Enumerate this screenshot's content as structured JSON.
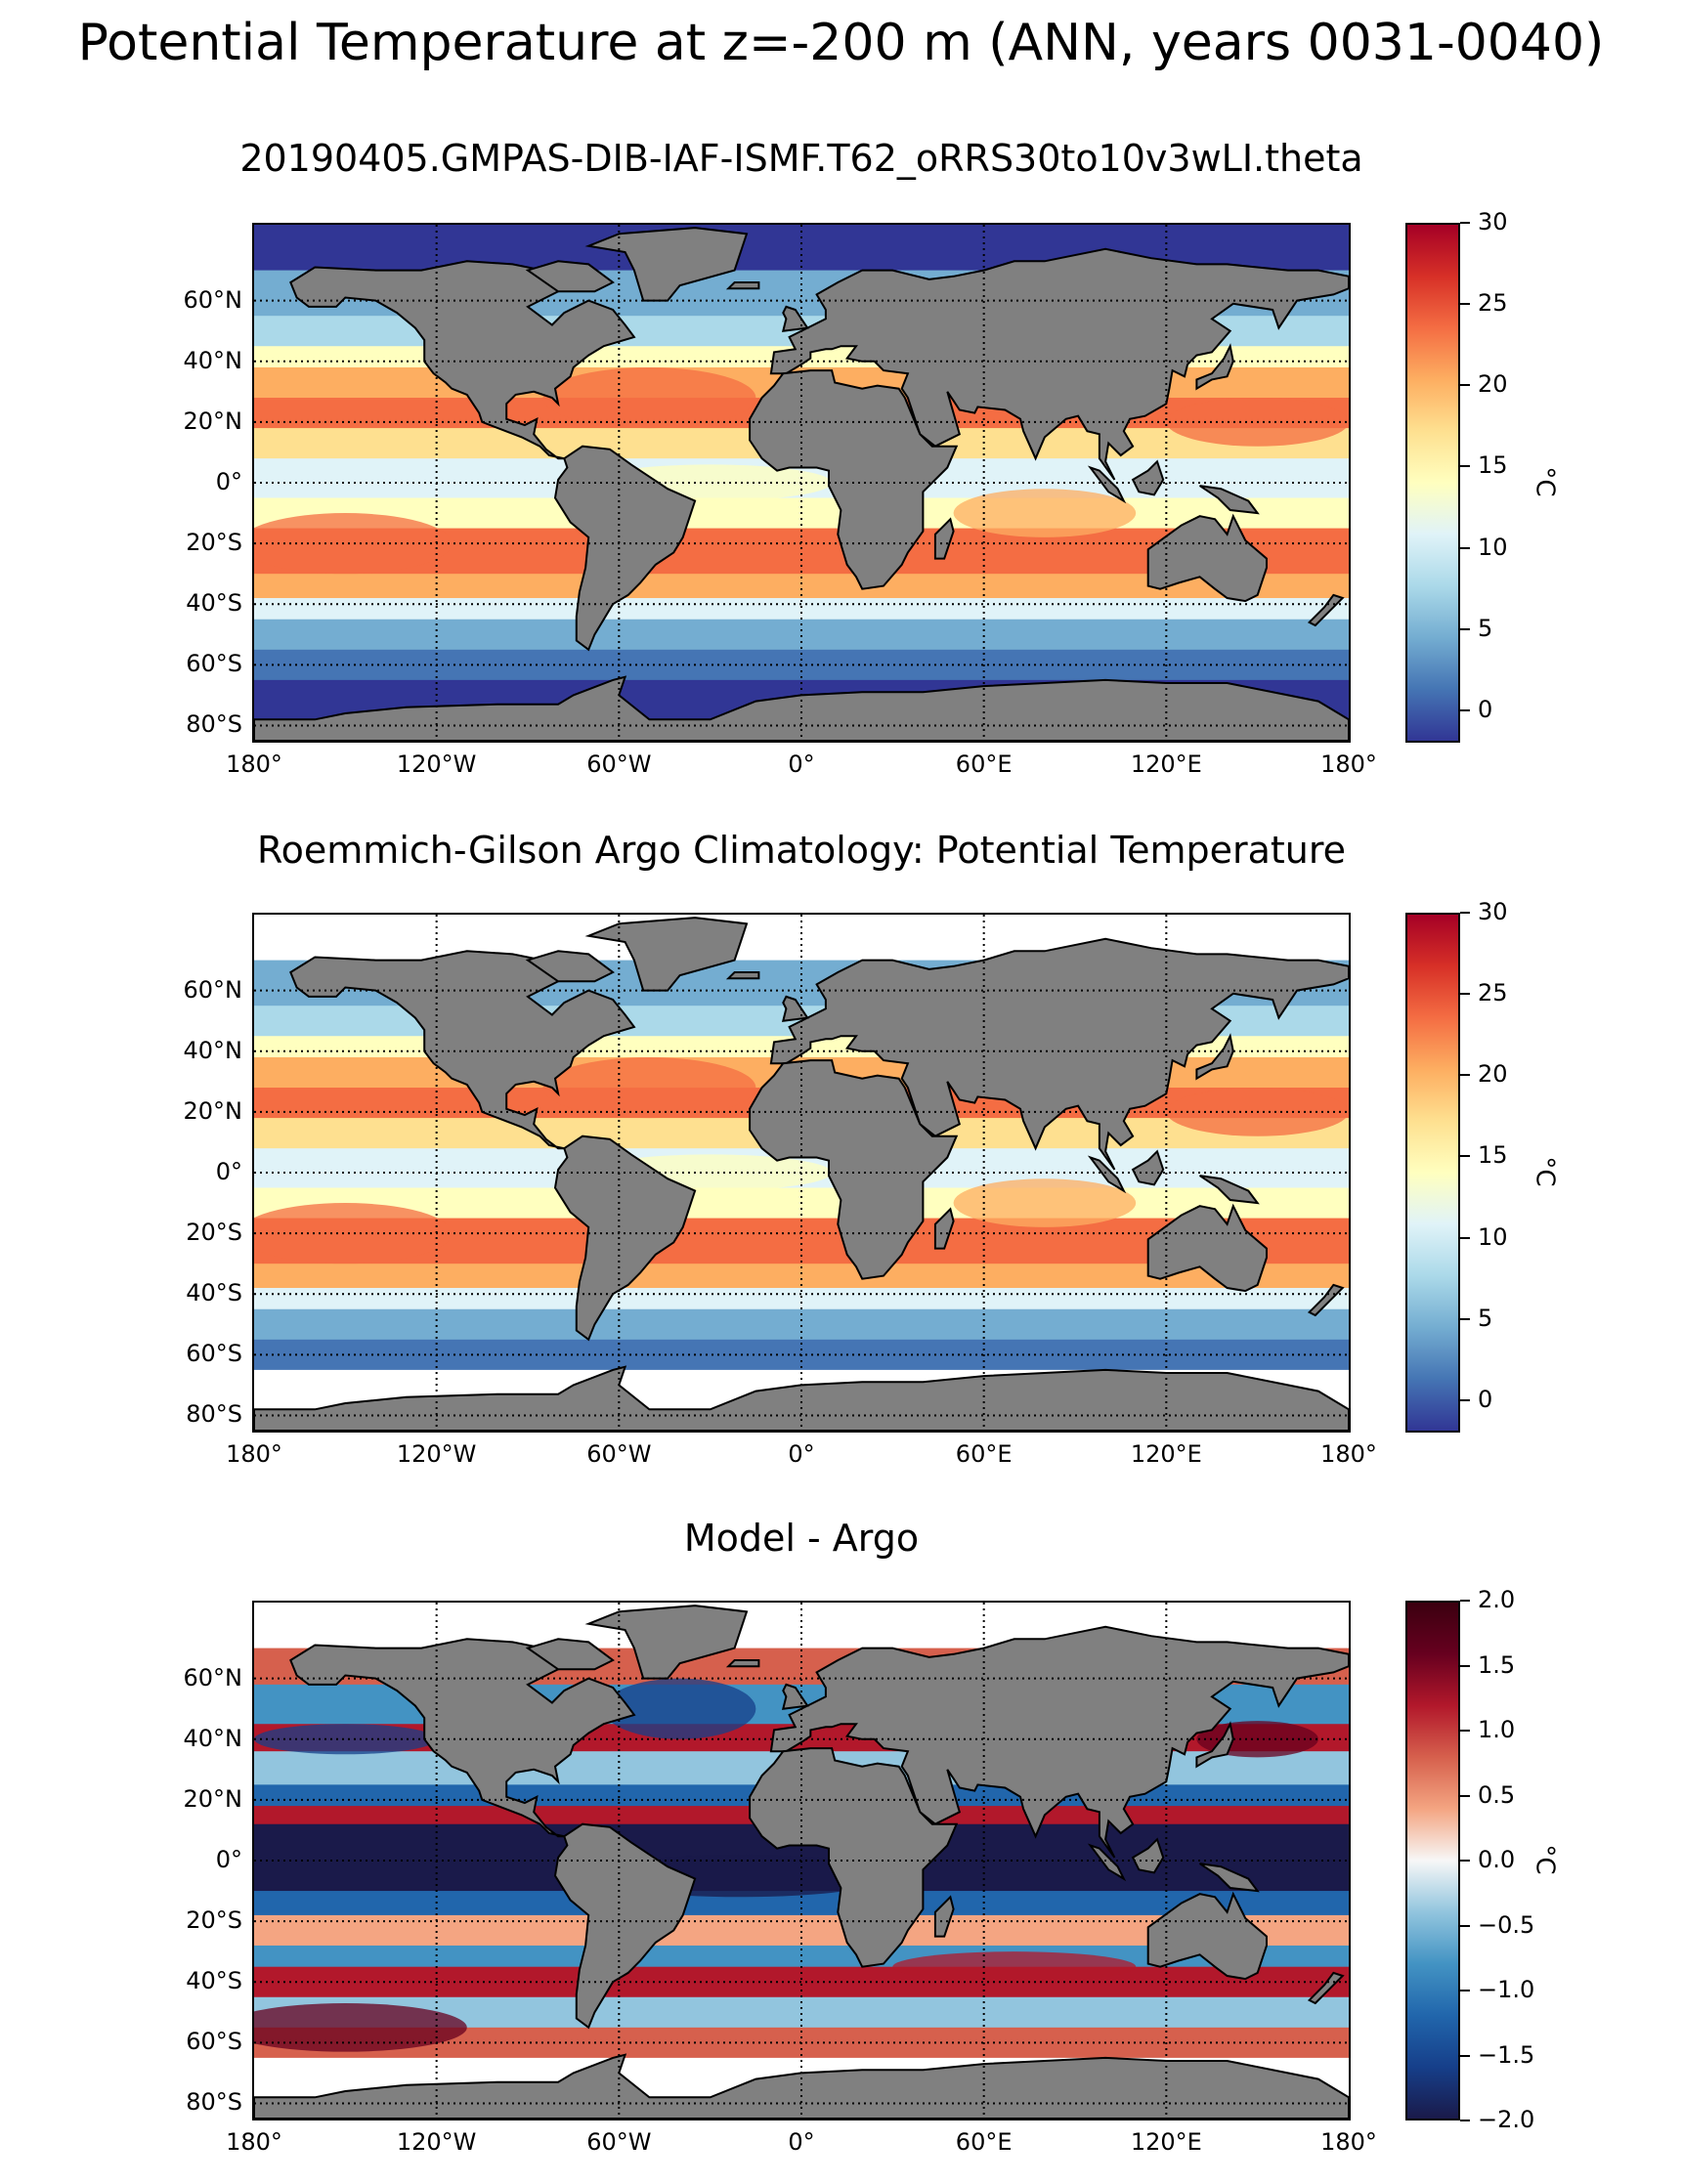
{
  "figure_title": "Potential Temperature at z=-200 m (ANN, years 0031-0040)",
  "panels": [
    {
      "title": "20190405.GMPAS-DIB-IAF-ISMF.T62_oRRS30to10v3wLI.theta",
      "colorbar_label": "°C",
      "colorbar_ticks": [
        "30",
        "25",
        "20",
        "15",
        "10",
        "5",
        "0"
      ],
      "colormap": "RdYlBu_r"
    },
    {
      "title": "Roemmich-Gilson Argo Climatology: Potential Temperature",
      "colorbar_label": "°C",
      "colorbar_ticks": [
        "30",
        "25",
        "20",
        "15",
        "10",
        "5",
        "0"
      ],
      "colormap": "RdYlBu_r"
    },
    {
      "title": "Model - Argo",
      "colorbar_label": "°C",
      "colorbar_ticks": [
        "2.0",
        "1.5",
        "1.0",
        "0.5",
        "0.0",
        "−0.5",
        "−1.0",
        "−1.5",
        "−2.0"
      ],
      "colormap": "RdBu_r"
    }
  ],
  "lat_labels": [
    "60°N",
    "40°N",
    "20°N",
    "0°",
    "20°S",
    "40°S",
    "60°S",
    "80°S"
  ],
  "lon_labels": [
    "180°",
    "120°W",
    "60°W",
    "0°",
    "60°E",
    "120°E",
    "180°"
  ],
  "colors": {
    "land": "#808080",
    "missing": "#ffffff"
  },
  "chart_data": [
    {
      "type": "heatmap",
      "title": "20190405.GMPAS-DIB-IAF-ISMF.T62_oRRS30to10v3wLI.theta",
      "projection": "PlateCarree",
      "lon_range": [
        -180,
        180
      ],
      "lat_range": [
        -85,
        85
      ],
      "vmin": -2,
      "vmax": 30,
      "colorbar_label": "°C"
    },
    {
      "type": "heatmap",
      "title": "Roemmich-Gilson Argo Climatology: Potential Temperature",
      "projection": "PlateCarree",
      "lon_range": [
        -180,
        180
      ],
      "lat_range": [
        -85,
        85
      ],
      "vmin": -2,
      "vmax": 30,
      "colorbar_label": "°C"
    },
    {
      "type": "heatmap",
      "title": "Model - Argo",
      "projection": "PlateCarree",
      "lon_range": [
        -180,
        180
      ],
      "lat_range": [
        -85,
        85
      ],
      "vmin": -2,
      "vmax": 2,
      "colorbar_label": "°C"
    }
  ]
}
